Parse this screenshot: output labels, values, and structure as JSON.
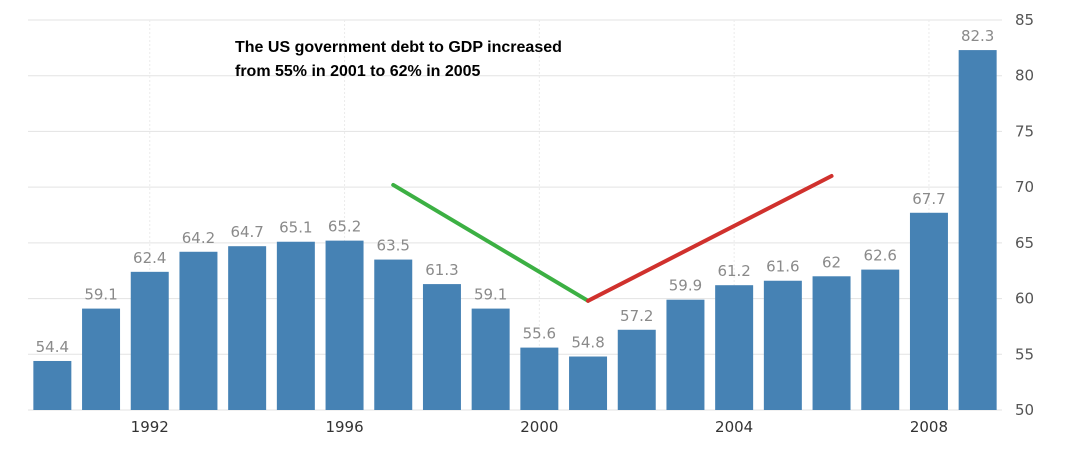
{
  "chart_data": {
    "type": "bar",
    "categories": [
      "1990",
      "1991",
      "1992",
      "1993",
      "1994",
      "1995",
      "1996",
      "1997",
      "1998",
      "1999",
      "2000",
      "2001",
      "2002",
      "2003",
      "2004",
      "2005",
      "2006",
      "2007",
      "2008",
      "2009"
    ],
    "values": [
      54.4,
      59.1,
      62.4,
      64.2,
      64.7,
      65.1,
      65.2,
      63.5,
      61.3,
      59.1,
      55.6,
      54.8,
      57.2,
      59.9,
      61.2,
      61.6,
      62,
      62.6,
      67.7,
      82.3
    ],
    "value_labels": [
      "54.4",
      "59.1",
      "62.4",
      "64.2",
      "64.7",
      "65.1",
      "65.2",
      "63.5",
      "61.3",
      "59.1",
      "55.6",
      "54.8",
      "57.2",
      "59.9",
      "61.2",
      "61.6",
      "62",
      "62.6",
      "67.7",
      "82.3"
    ],
    "x_tick_labels": [
      "1992",
      "1996",
      "2000",
      "2004",
      "2008"
    ],
    "x_tick_years": [
      1992,
      1996,
      2000,
      2004,
      2008
    ],
    "y_ticks": [
      "50",
      "55",
      "60",
      "65",
      "70",
      "75",
      "80",
      "85"
    ],
    "ylim": [
      50,
      85
    ],
    "title": "",
    "xlabel": "",
    "ylabel": "",
    "grid": true,
    "y_axis_side": "right",
    "bar_color": "#4682b4",
    "annotation": {
      "lines": [
        "The US government debt to GDP increased",
        "from 55% in 2001 to 62% in 2005"
      ]
    },
    "trend_lines": [
      {
        "color": "#3cb043",
        "from": {
          "x": 1997,
          "y": 70.2
        },
        "to": {
          "x": 2001,
          "y": 59.8
        }
      },
      {
        "color": "#d0312d",
        "from": {
          "x": 2001,
          "y": 59.8
        },
        "to": {
          "x": 2006,
          "y": 71
        }
      }
    ]
  }
}
